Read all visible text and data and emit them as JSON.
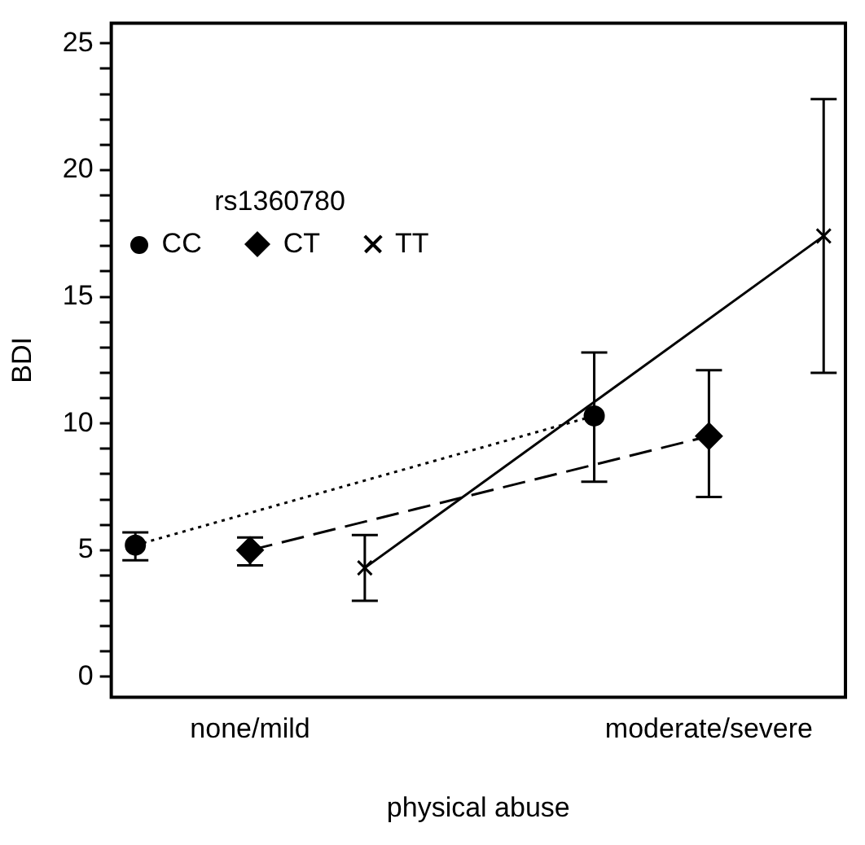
{
  "chart_data": {
    "type": "line",
    "xlabel": "physical abuse",
    "ylabel": "BDI",
    "legend_title": "rs1360780",
    "legend": "top left",
    "grid": false,
    "categories": [
      null,
      "none/mild",
      null,
      null,
      null,
      "moderate/severe",
      null
    ],
    "ylim": [
      -0.8,
      25.8
    ],
    "yticks": [
      0,
      {
        "value": 1,
        "label": null
      },
      {
        "value": 2,
        "label": null
      },
      {
        "value": 3,
        "label": null
      },
      {
        "value": 4,
        "label": null
      },
      5,
      {
        "value": 6,
        "label": null
      },
      {
        "value": 7,
        "label": null
      },
      {
        "value": 8,
        "label": null
      },
      {
        "value": 9,
        "label": null
      },
      10,
      {
        "value": 11,
        "label": null
      },
      {
        "value": 12,
        "label": null
      },
      {
        "value": 13,
        "label": null
      },
      {
        "value": 14,
        "label": null
      },
      15,
      {
        "value": 16,
        "label": null
      },
      {
        "value": 17,
        "label": null
      },
      {
        "value": 18,
        "label": null
      },
      {
        "value": 19,
        "label": null
      },
      20,
      {
        "value": 21,
        "label": null
      },
      {
        "value": 22,
        "label": null
      },
      {
        "value": 23,
        "label": null
      },
      {
        "value": 24,
        "label": null
      },
      25
    ],
    "series": [
      {
        "name": "CC",
        "color": "#000000",
        "marker": "circle",
        "line_style": "dotted",
        "values": [
          5.2,
          null,
          null,
          null,
          10.3,
          null,
          null
        ],
        "errors": [
          [
            4.6,
            5.7
          ],
          null,
          null,
          null,
          [
            7.7,
            12.8
          ],
          null,
          null
        ]
      },
      {
        "name": "CT",
        "color": "#000000",
        "marker": "diamond",
        "line_style": "dashed",
        "values": [
          null,
          5.0,
          null,
          null,
          null,
          9.5,
          null
        ],
        "errors": [
          null,
          [
            4.4,
            5.5
          ],
          null,
          null,
          null,
          [
            7.1,
            12.1
          ],
          null
        ]
      },
      {
        "name": "TT",
        "color": "#000000",
        "marker": "cross",
        "line_style": "solid",
        "values": [
          null,
          null,
          4.3,
          null,
          null,
          null,
          17.4
        ],
        "errors": [
          null,
          null,
          [
            3.0,
            5.6
          ],
          null,
          null,
          null,
          [
            12.0,
            22.8
          ]
        ]
      }
    ]
  }
}
